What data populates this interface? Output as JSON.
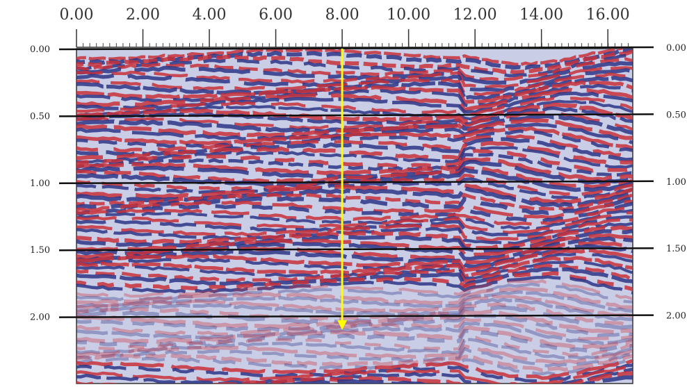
{
  "chart_data": {
    "type": "radargram",
    "xlim": [
      0,
      16.75
    ],
    "ylim": [
      0,
      2.5
    ],
    "xticks": [
      {
        "value": 0,
        "label": "0.00"
      },
      {
        "value": 2,
        "label": "2.00"
      },
      {
        "value": 4,
        "label": "4.00"
      },
      {
        "value": 6,
        "label": "6.00"
      },
      {
        "value": 8,
        "label": "8.00"
      },
      {
        "value": 10,
        "label": "10.00"
      },
      {
        "value": 12,
        "label": "12.00"
      },
      {
        "value": 14,
        "label": "14.00"
      },
      {
        "value": 16,
        "label": "16.00"
      }
    ],
    "yticks": [
      {
        "value": 0,
        "label": "0.00"
      },
      {
        "value": 0.5,
        "label": "0.50"
      },
      {
        "value": 1,
        "label": "1.00"
      },
      {
        "value": 1.5,
        "label": "1.50"
      },
      {
        "value": 2,
        "label": "2.00"
      }
    ],
    "grid": true,
    "arrow": {
      "x": 8,
      "y_end": 2.1,
      "color": "#ffff00"
    }
  }
}
